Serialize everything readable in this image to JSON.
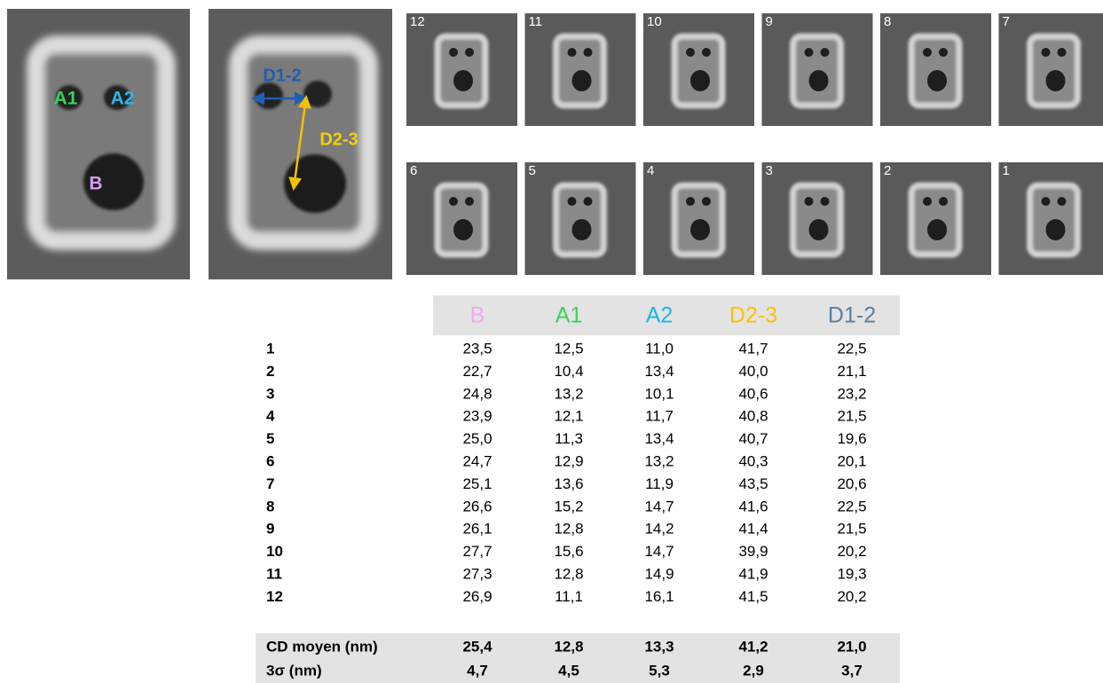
{
  "large_images": [
    {
      "labels": [
        "A1",
        "A2",
        "B"
      ],
      "label_colors": [
        "#3ad25c",
        "#2ab8ea",
        "#d79cf0"
      ]
    },
    {
      "labels": [
        "D1-2",
        "D2-3"
      ],
      "label_colors": [
        "#1f5fb0",
        "#f5d000"
      ]
    }
  ],
  "thumbnails": [
    12,
    11,
    10,
    9,
    8,
    7,
    6,
    5,
    4,
    3,
    2,
    1
  ],
  "table": {
    "header": [
      "B",
      "A1",
      "A2",
      "D2-3",
      "D1-2"
    ],
    "header_colors": [
      "#f5a8f0",
      "#3ad25c",
      "#1eb4e6",
      "#ffc000",
      "#5b7fa0"
    ],
    "rows": [
      [
        "1",
        "23,5",
        "12,5",
        "11,0",
        "41,7",
        "22,5"
      ],
      [
        "2",
        "22,7",
        "10,4",
        "13,4",
        "40,0",
        "21,1"
      ],
      [
        "3",
        "24,8",
        "13,2",
        "10,1",
        "40,6",
        "23,2"
      ],
      [
        "4",
        "23,9",
        "12,1",
        "11,7",
        "40,8",
        "21,5"
      ],
      [
        "5",
        "25,0",
        "11,3",
        "13,4",
        "40,7",
        "19,6"
      ],
      [
        "6",
        "24,7",
        "12,9",
        "13,2",
        "40,3",
        "20,1"
      ],
      [
        "7",
        "25,1",
        "13,6",
        "11,9",
        "43,5",
        "20,6"
      ],
      [
        "8",
        "26,6",
        "15,2",
        "14,7",
        "41,6",
        "22,5"
      ],
      [
        "9",
        "26,1",
        "12,8",
        "14,2",
        "41,4",
        "21,5"
      ],
      [
        "10",
        "27,7",
        "15,6",
        "14,7",
        "39,9",
        "20,2"
      ],
      [
        "11",
        "27,3",
        "12,8",
        "14,9",
        "41,9",
        "19,3"
      ],
      [
        "12",
        "26,9",
        "11,1",
        "16,1",
        "41,5",
        "20,2"
      ]
    ],
    "summary": [
      [
        "CD moyen (nm)",
        "25,4",
        "12,8",
        "13,3",
        "41,2",
        "21,0"
      ],
      [
        "3σ  (nm)",
        "4,7",
        "4,5",
        "5,3",
        "2,9",
        "3,7"
      ]
    ]
  }
}
